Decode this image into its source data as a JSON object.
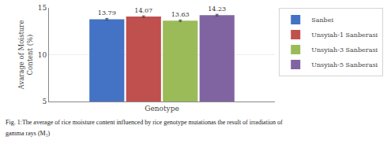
{
  "chart_data": {
    "type": "bar",
    "categories": [
      "Genotype"
    ],
    "series": [
      {
        "name": "Sanbei",
        "color": "#4472C4",
        "values": [
          13.79
        ],
        "errors": [
          0.08
        ]
      },
      {
        "name": "Unsyiah-1 Sanberasi",
        "color": "#C0504D",
        "values": [
          14.07
        ],
        "errors": [
          0.08
        ]
      },
      {
        "name": "Unsyiah-3 Sanberasi",
        "color": "#9BBB59",
        "values": [
          13.63
        ],
        "errors": [
          0.08
        ]
      },
      {
        "name": "Unsyiah-5 Sanberasi",
        "color": "#8064A2",
        "values": [
          14.23
        ],
        "errors": [
          0.08
        ]
      }
    ],
    "ylabel": "Avarage of Moisture\nContent (%)",
    "ylim": [
      5,
      15
    ],
    "yticks": [
      5,
      10,
      15
    ],
    "grid": true,
    "legend": "right",
    "data_labels": true,
    "annotations": [
      "Fig. 1:The average of rice moisture content influenced by rice genotype mutationas the result of irradiation of",
      "gamma rays (M₃)"
    ]
  }
}
